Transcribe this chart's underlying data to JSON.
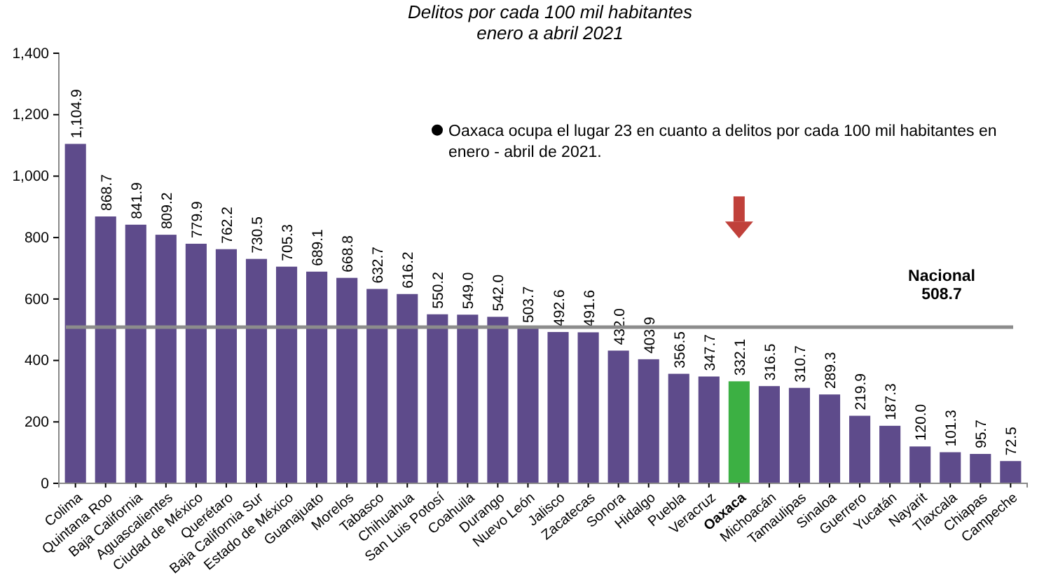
{
  "chart_data": {
    "type": "bar",
    "title": "Delitos por cada 100 mil habitantes",
    "subtitle": "enero a abril 2021",
    "categories": [
      "Colima",
      "Quintana Roo",
      "Baja California",
      "Aguascalientes",
      "Ciudad de México",
      "Querétaro",
      "Baja California Sur",
      "Estado de México",
      "Guanajuato",
      "Morelos",
      "Tabasco",
      "Chihuahua",
      "San Luis Potosí",
      "Coahuila",
      "Durango",
      "Nuevo León",
      "Jalisco",
      "Zacatecas",
      "Sonora",
      "Hidalgo",
      "Puebla",
      "Veracruz",
      "Oaxaca",
      "Michoacán",
      "Tamaulipas",
      "Sinaloa",
      "Guerrero",
      "Yucatán",
      "Nayarit",
      "Tlaxcala",
      "Chiapas",
      "Campeche"
    ],
    "values": [
      1104.9,
      868.7,
      841.9,
      809.2,
      779.9,
      762.2,
      730.5,
      705.3,
      689.1,
      668.8,
      632.7,
      616.2,
      550.2,
      549.0,
      542.0,
      503.7,
      492.6,
      491.6,
      432.0,
      403.9,
      356.5,
      347.7,
      332.1,
      316.5,
      310.7,
      289.3,
      219.9,
      187.3,
      120.0,
      101.3,
      95.7,
      72.5
    ],
    "value_labels": [
      "1,104.9",
      "868.7",
      "841.9",
      "809.2",
      "779.9",
      "762.2",
      "730.5",
      "705.3",
      "689.1",
      "668.8",
      "632.7",
      "616.2",
      "550.2",
      "549.0",
      "542.0",
      "503.7",
      "492.6",
      "491.6",
      "432.0",
      "403.9",
      "356.5",
      "347.7",
      "332.1",
      "316.5",
      "310.7",
      "289.3",
      "219.9",
      "187.3",
      "120.0",
      "101.3",
      "95.7",
      "72.5"
    ],
    "colors": [
      "#5e4b8b",
      "#5e4b8b",
      "#5e4b8b",
      "#5e4b8b",
      "#5e4b8b",
      "#5e4b8b",
      "#5e4b8b",
      "#5e4b8b",
      "#5e4b8b",
      "#5e4b8b",
      "#5e4b8b",
      "#5e4b8b",
      "#5e4b8b",
      "#5e4b8b",
      "#5e4b8b",
      "#5e4b8b",
      "#5e4b8b",
      "#5e4b8b",
      "#5e4b8b",
      "#5e4b8b",
      "#5e4b8b",
      "#5e4b8b",
      "#3cb043",
      "#5e4b8b",
      "#5e4b8b",
      "#5e4b8b",
      "#5e4b8b",
      "#5e4b8b",
      "#5e4b8b",
      "#5e4b8b",
      "#5e4b8b",
      "#5e4b8b"
    ],
    "ylim": [
      0,
      1400
    ],
    "yticks": [
      {
        "value": 0,
        "label": "0"
      },
      {
        "value": 200,
        "label": "200"
      },
      {
        "value": 400,
        "label": "400"
      },
      {
        "value": 600,
        "label": "600"
      },
      {
        "value": 800,
        "label": "800"
      },
      {
        "value": 1000,
        "label": "1,000"
      },
      {
        "value": 1200,
        "label": "1,200"
      },
      {
        "value": 1400,
        "label": "1,400"
      }
    ],
    "ref_lines": [
      {
        "axis": "y",
        "value": 508.7,
        "label": "Nacional 508.7",
        "color": "#8c8c8c"
      }
    ],
    "annotations": [
      "Oaxaca ocupa el lugar 23 en cuanto a delitos por cada 100 mil habitantes en enero - abril de 2021."
    ],
    "grid": false
  }
}
